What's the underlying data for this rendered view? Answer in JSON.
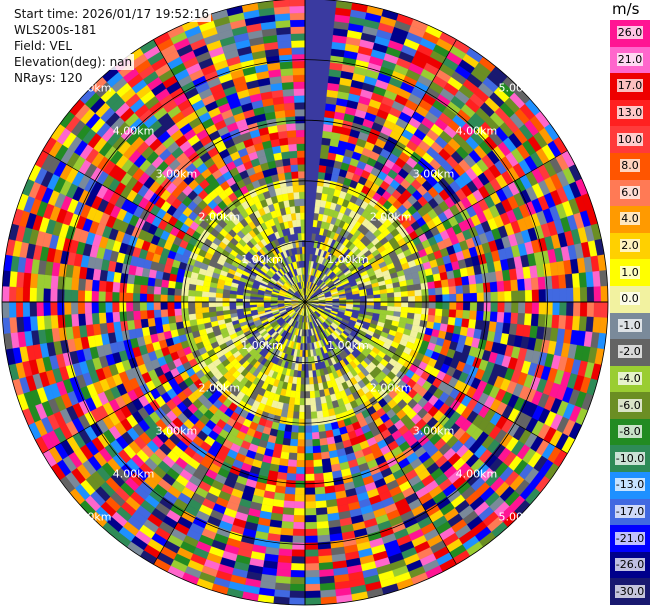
{
  "info": {
    "start_time": "Start time: 2026/01/17 19:52:16",
    "instrument": "WLS200s-181",
    "field": "Field: VEL",
    "elevation": "Elevation(deg): nan",
    "nrays": "NRays: 120"
  },
  "chart_data": {
    "type": "heatmap",
    "projection": "polar-ppi",
    "field": "VEL",
    "units": "m/s",
    "nrays": 120,
    "range_rings_km": [
      1.0,
      2.0,
      3.0,
      4.0,
      5.0
    ],
    "range_ring_labels": [
      "1.00km",
      "2.00km",
      "3.00km",
      "4.00km",
      "5.00km"
    ],
    "gap_azimuth_deg": 3,
    "colorbar": {
      "ticks": [
        "26.0",
        "21.0",
        "17.0",
        "13.0",
        "10.0",
        "8.0",
        "6.0",
        "4.0",
        "2.0",
        "1.0",
        "0.0",
        "-1.0",
        "-2.0",
        "-4.0",
        "-6.0",
        "-8.0",
        "-10.0",
        "-13.0",
        "-17.0",
        "-21.0",
        "-26.0",
        "-30.0"
      ],
      "colors": [
        "#ff1493",
        "#ff66cc",
        "#ee0000",
        "#ff2020",
        "#ff3a3a",
        "#ff5500",
        "#ff7a55",
        "#ff9a00",
        "#ffd000",
        "#ffff00",
        "#f2f2a0",
        "#7a8a9a",
        "#646464",
        "#9acd32",
        "#6b8e23",
        "#228b22",
        "#2e8b57",
        "#1e90ff",
        "#4169e1",
        "#0000ff",
        "#00008b",
        "#191970"
      ]
    },
    "inner_region_note": "near-range bins 0-2 km dominated by weak velocities (-2 to 2 m/s); outer bins noisy across full scale"
  }
}
